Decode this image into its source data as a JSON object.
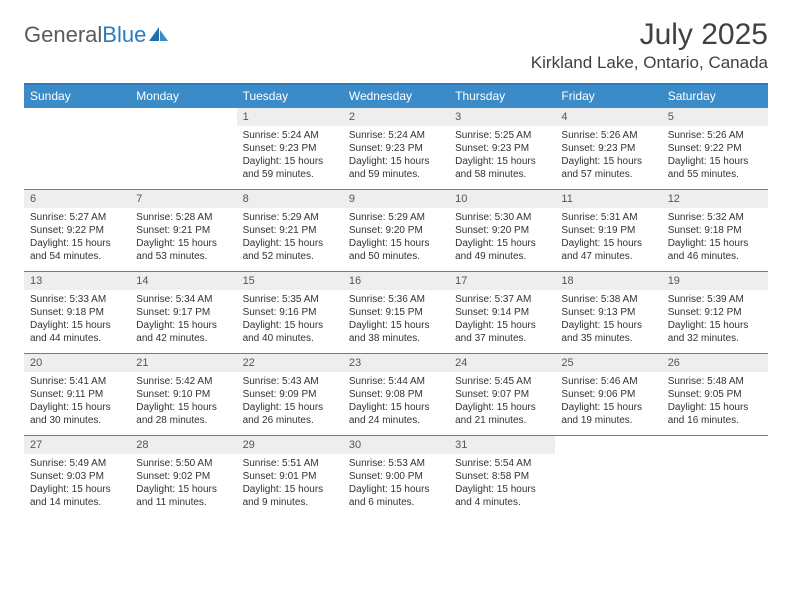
{
  "logo": {
    "text1": "General",
    "text2": "Blue"
  },
  "title": "July 2025",
  "location": "Kirkland Lake, Ontario, Canada",
  "colors": {
    "header_bg": "#3b8bc9",
    "border": "#2b7bbf",
    "daynum_bg": "#eeeeee",
    "text": "#333333"
  },
  "dayNames": [
    "Sunday",
    "Monday",
    "Tuesday",
    "Wednesday",
    "Thursday",
    "Friday",
    "Saturday"
  ],
  "weeks": [
    {
      "nums": [
        "",
        "",
        "1",
        "2",
        "3",
        "4",
        "5"
      ],
      "cells": [
        null,
        null,
        {
          "sunrise": "5:24 AM",
          "sunset": "9:23 PM",
          "daylight": "15 hours and 59 minutes."
        },
        {
          "sunrise": "5:24 AM",
          "sunset": "9:23 PM",
          "daylight": "15 hours and 59 minutes."
        },
        {
          "sunrise": "5:25 AM",
          "sunset": "9:23 PM",
          "daylight": "15 hours and 58 minutes."
        },
        {
          "sunrise": "5:26 AM",
          "sunset": "9:23 PM",
          "daylight": "15 hours and 57 minutes."
        },
        {
          "sunrise": "5:26 AM",
          "sunset": "9:22 PM",
          "daylight": "15 hours and 55 minutes."
        }
      ]
    },
    {
      "nums": [
        "6",
        "7",
        "8",
        "9",
        "10",
        "11",
        "12"
      ],
      "cells": [
        {
          "sunrise": "5:27 AM",
          "sunset": "9:22 PM",
          "daylight": "15 hours and 54 minutes."
        },
        {
          "sunrise": "5:28 AM",
          "sunset": "9:21 PM",
          "daylight": "15 hours and 53 minutes."
        },
        {
          "sunrise": "5:29 AM",
          "sunset": "9:21 PM",
          "daylight": "15 hours and 52 minutes."
        },
        {
          "sunrise": "5:29 AM",
          "sunset": "9:20 PM",
          "daylight": "15 hours and 50 minutes."
        },
        {
          "sunrise": "5:30 AM",
          "sunset": "9:20 PM",
          "daylight": "15 hours and 49 minutes."
        },
        {
          "sunrise": "5:31 AM",
          "sunset": "9:19 PM",
          "daylight": "15 hours and 47 minutes."
        },
        {
          "sunrise": "5:32 AM",
          "sunset": "9:18 PM",
          "daylight": "15 hours and 46 minutes."
        }
      ]
    },
    {
      "nums": [
        "13",
        "14",
        "15",
        "16",
        "17",
        "18",
        "19"
      ],
      "cells": [
        {
          "sunrise": "5:33 AM",
          "sunset": "9:18 PM",
          "daylight": "15 hours and 44 minutes."
        },
        {
          "sunrise": "5:34 AM",
          "sunset": "9:17 PM",
          "daylight": "15 hours and 42 minutes."
        },
        {
          "sunrise": "5:35 AM",
          "sunset": "9:16 PM",
          "daylight": "15 hours and 40 minutes."
        },
        {
          "sunrise": "5:36 AM",
          "sunset": "9:15 PM",
          "daylight": "15 hours and 38 minutes."
        },
        {
          "sunrise": "5:37 AM",
          "sunset": "9:14 PM",
          "daylight": "15 hours and 37 minutes."
        },
        {
          "sunrise": "5:38 AM",
          "sunset": "9:13 PM",
          "daylight": "15 hours and 35 minutes."
        },
        {
          "sunrise": "5:39 AM",
          "sunset": "9:12 PM",
          "daylight": "15 hours and 32 minutes."
        }
      ]
    },
    {
      "nums": [
        "20",
        "21",
        "22",
        "23",
        "24",
        "25",
        "26"
      ],
      "cells": [
        {
          "sunrise": "5:41 AM",
          "sunset": "9:11 PM",
          "daylight": "15 hours and 30 minutes."
        },
        {
          "sunrise": "5:42 AM",
          "sunset": "9:10 PM",
          "daylight": "15 hours and 28 minutes."
        },
        {
          "sunrise": "5:43 AM",
          "sunset": "9:09 PM",
          "daylight": "15 hours and 26 minutes."
        },
        {
          "sunrise": "5:44 AM",
          "sunset": "9:08 PM",
          "daylight": "15 hours and 24 minutes."
        },
        {
          "sunrise": "5:45 AM",
          "sunset": "9:07 PM",
          "daylight": "15 hours and 21 minutes."
        },
        {
          "sunrise": "5:46 AM",
          "sunset": "9:06 PM",
          "daylight": "15 hours and 19 minutes."
        },
        {
          "sunrise": "5:48 AM",
          "sunset": "9:05 PM",
          "daylight": "15 hours and 16 minutes."
        }
      ]
    },
    {
      "nums": [
        "27",
        "28",
        "29",
        "30",
        "31",
        "",
        ""
      ],
      "cells": [
        {
          "sunrise": "5:49 AM",
          "sunset": "9:03 PM",
          "daylight": "15 hours and 14 minutes."
        },
        {
          "sunrise": "5:50 AM",
          "sunset": "9:02 PM",
          "daylight": "15 hours and 11 minutes."
        },
        {
          "sunrise": "5:51 AM",
          "sunset": "9:01 PM",
          "daylight": "15 hours and 9 minutes."
        },
        {
          "sunrise": "5:53 AM",
          "sunset": "9:00 PM",
          "daylight": "15 hours and 6 minutes."
        },
        {
          "sunrise": "5:54 AM",
          "sunset": "8:58 PM",
          "daylight": "15 hours and 4 minutes."
        },
        null,
        null
      ]
    }
  ],
  "labels": {
    "sunrise": "Sunrise:",
    "sunset": "Sunset:",
    "daylight": "Daylight:"
  }
}
